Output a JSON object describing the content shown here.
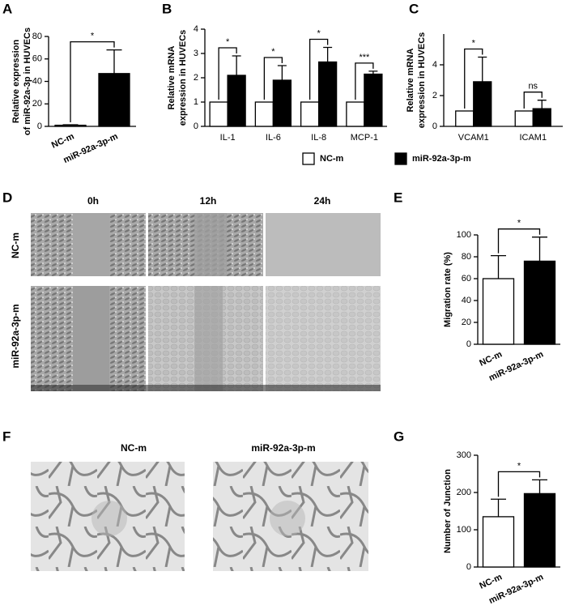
{
  "panels": [
    "A",
    "B",
    "C",
    "D",
    "E",
    "F",
    "G"
  ],
  "images": {
    "D": {
      "columns": [
        "0h",
        "12h",
        "24h"
      ],
      "rows": [
        "NC-m",
        "miR-92a-3p-m"
      ]
    },
    "F": {
      "columns": [
        "NC-m",
        "miR-92a-3p-m"
      ]
    }
  },
  "chart_data": [
    {
      "type": "bar",
      "ylabel": [
        "Relative expression",
        "of miR-92a-3p in HUVECs"
      ],
      "categories": [
        "NC-m",
        "miR-92a-3p-m"
      ],
      "values": [
        1,
        47
      ],
      "errors": [
        0.4,
        21
      ],
      "colors": [
        "#ffffff",
        "#000000"
      ],
      "ylim": [
        0,
        80
      ],
      "yticks": [
        0,
        20,
        40,
        60,
        80
      ],
      "annotations": [
        "*"
      ]
    },
    {
      "type": "grouped-bar",
      "ylabel": [
        "Relative mRNA",
        "expression in HUVECs"
      ],
      "categories": [
        "IL-1",
        "IL-6",
        "IL-8",
        "MCP-1"
      ],
      "series": [
        {
          "name": "NC-m",
          "color": "#ffffff",
          "values": [
            1,
            1,
            1,
            1
          ],
          "errors": [
            0,
            0,
            0,
            0
          ]
        },
        {
          "name": "miR-92a-3p-m",
          "color": "#000000",
          "values": [
            2.1,
            1.9,
            2.65,
            2.15
          ],
          "errors": [
            0.8,
            0.6,
            0.6,
            0.12
          ]
        }
      ],
      "ylim": [
        0,
        4
      ],
      "yticks": [
        0,
        1,
        2,
        3,
        4
      ],
      "annotations": [
        "*",
        "*",
        "*",
        "***"
      ]
    },
    {
      "type": "grouped-bar",
      "ylabel": [
        "Relative mRNA",
        "expression in HUVECs"
      ],
      "categories": [
        "VCAM1",
        "ICAM1"
      ],
      "series": [
        {
          "color": "#ffffff",
          "values": [
            1,
            1
          ],
          "errors": [
            0,
            0
          ]
        },
        {
          "color": "#000000",
          "values": [
            2.9,
            1.15
          ],
          "errors": [
            1.6,
            0.55
          ]
        }
      ],
      "ylim": [
        0,
        6
      ],
      "yticks": [
        0,
        2,
        4
      ],
      "annotations": [
        "*",
        "ns"
      ]
    },
    {
      "type": "bar",
      "ylabel": "Migration rate (%)",
      "categories": [
        "NC-m",
        "miR-92a-3p-m"
      ],
      "values": [
        60,
        76
      ],
      "errors": [
        21,
        22
      ],
      "colors": [
        "#ffffff",
        "#000000"
      ],
      "ylim": [
        0,
        100
      ],
      "yticks": [
        0,
        20,
        40,
        60,
        80,
        100
      ],
      "annotations": [
        "*"
      ]
    },
    {
      "type": "bar",
      "ylabel": "Number of Junction",
      "categories": [
        "NC-m",
        "miR-92a-3p-m"
      ],
      "values": [
        135,
        197
      ],
      "errors": [
        47,
        37
      ],
      "colors": [
        "#ffffff",
        "#000000"
      ],
      "ylim": [
        0,
        300
      ],
      "yticks": [
        0,
        100,
        200,
        300
      ],
      "annotations": [
        "*"
      ]
    }
  ]
}
